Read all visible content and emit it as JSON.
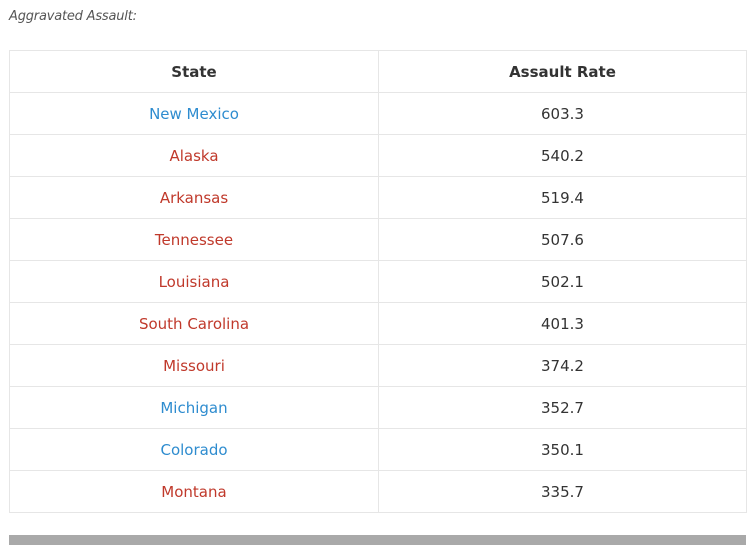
{
  "caption": "Aggravated Assault:",
  "table": {
    "headers": [
      "State",
      "Assault Rate"
    ],
    "rows": [
      {
        "state": "New Mexico",
        "rate": "603.3",
        "color": "#2e8ccf"
      },
      {
        "state": "Alaska",
        "rate": "540.2",
        "color": "#c0392b"
      },
      {
        "state": "Arkansas",
        "rate": "519.4",
        "color": "#c0392b"
      },
      {
        "state": "Tennessee",
        "rate": "507.6",
        "color": "#c0392b"
      },
      {
        "state": "Louisiana",
        "rate": "502.1",
        "color": "#c0392b"
      },
      {
        "state": "South Carolina",
        "rate": "401.3",
        "color": "#c0392b"
      },
      {
        "state": "Missouri",
        "rate": "374.2",
        "color": "#c0392b"
      },
      {
        "state": "Michigan",
        "rate": "352.7",
        "color": "#2e8ccf"
      },
      {
        "state": "Colorado",
        "rate": "350.1",
        "color": "#2e8ccf"
      },
      {
        "state": "Montana",
        "rate": "335.7",
        "color": "#c0392b"
      }
    ]
  }
}
